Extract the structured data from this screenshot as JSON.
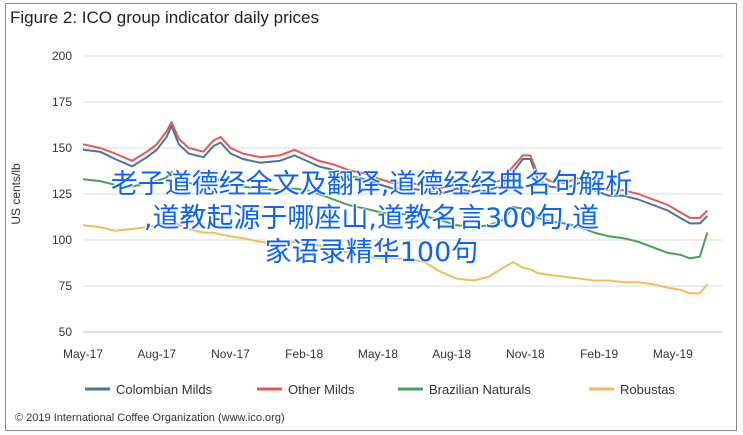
{
  "chart_data": {
    "type": "line",
    "title": "Figure 2: ICO group indicator daily prices",
    "ylabel": "US cents/lb",
    "ylim": [
      50,
      200
    ],
    "yticks": [
      50,
      75,
      100,
      125,
      150,
      175,
      200
    ],
    "xlim": [
      0,
      26
    ],
    "xticks": [
      {
        "pos": 0,
        "label": "May-17"
      },
      {
        "pos": 3,
        "label": "Aug-17"
      },
      {
        "pos": 6,
        "label": "Nov-17"
      },
      {
        "pos": 9,
        "label": "Feb-18"
      },
      {
        "pos": 12,
        "label": "May-18"
      },
      {
        "pos": 15,
        "label": "Aug-18"
      },
      {
        "pos": 18,
        "label": "Nov-18"
      },
      {
        "pos": 21,
        "label": "Feb-19"
      },
      {
        "pos": 24,
        "label": "May-19"
      }
    ],
    "grid": "horizontal",
    "legend_position": "bottom",
    "series": [
      {
        "name": "Colombian Milds",
        "color": "#4a7696",
        "points": [
          [
            0,
            149
          ],
          [
            0.7,
            148
          ],
          [
            1.3,
            144
          ],
          [
            2,
            140
          ],
          [
            2.6,
            145
          ],
          [
            3,
            149
          ],
          [
            3.4,
            156
          ],
          [
            3.6,
            162
          ],
          [
            3.9,
            152
          ],
          [
            4.3,
            147
          ],
          [
            4.9,
            145
          ],
          [
            5.3,
            151
          ],
          [
            5.6,
            153
          ],
          [
            6,
            147
          ],
          [
            6.5,
            144
          ],
          [
            7.2,
            142
          ],
          [
            8,
            143
          ],
          [
            8.6,
            146
          ],
          [
            9.1,
            143
          ],
          [
            9.6,
            140
          ],
          [
            10.2,
            138
          ],
          [
            10.8,
            135
          ],
          [
            11.5,
            133
          ],
          [
            12.1,
            130
          ],
          [
            12.6,
            128
          ],
          [
            13.2,
            128
          ],
          [
            13.9,
            127
          ],
          [
            14.5,
            125
          ],
          [
            15.2,
            128
          ],
          [
            15.9,
            126
          ],
          [
            16.5,
            127
          ],
          [
            17.1,
            130
          ],
          [
            17.5,
            137
          ],
          [
            17.9,
            144
          ],
          [
            18.2,
            144
          ],
          [
            18.5,
            133
          ],
          [
            19,
            129
          ],
          [
            19.6,
            128
          ],
          [
            20.2,
            131
          ],
          [
            20.8,
            127
          ],
          [
            21.4,
            124
          ],
          [
            22,
            124
          ],
          [
            22.6,
            122
          ],
          [
            23.2,
            119
          ],
          [
            23.8,
            116
          ],
          [
            24.3,
            112
          ],
          [
            24.7,
            109
          ],
          [
            25.1,
            109
          ],
          [
            25.4,
            113
          ]
        ]
      },
      {
        "name": "Other Milds",
        "color": "#e8574f",
        "points": [
          [
            0,
            152
          ],
          [
            0.7,
            150
          ],
          [
            1.3,
            147
          ],
          [
            2,
            143
          ],
          [
            2.6,
            148
          ],
          [
            3,
            152
          ],
          [
            3.4,
            159
          ],
          [
            3.6,
            164
          ],
          [
            3.9,
            155
          ],
          [
            4.3,
            150
          ],
          [
            4.9,
            148
          ],
          [
            5.3,
            154
          ],
          [
            5.6,
            156
          ],
          [
            6,
            150
          ],
          [
            6.5,
            147
          ],
          [
            7.2,
            145
          ],
          [
            8,
            146
          ],
          [
            8.6,
            149
          ],
          [
            9.1,
            146
          ],
          [
            9.6,
            143
          ],
          [
            10.2,
            141
          ],
          [
            10.8,
            138
          ],
          [
            11.5,
            136
          ],
          [
            12.1,
            133
          ],
          [
            12.6,
            131
          ],
          [
            13.2,
            131
          ],
          [
            13.9,
            130
          ],
          [
            14.5,
            128
          ],
          [
            15.2,
            131
          ],
          [
            15.9,
            129
          ],
          [
            16.5,
            130
          ],
          [
            17.1,
            133
          ],
          [
            17.5,
            140
          ],
          [
            17.9,
            146
          ],
          [
            18.2,
            146
          ],
          [
            18.5,
            136
          ],
          [
            19,
            132
          ],
          [
            19.6,
            131
          ],
          [
            20.2,
            134
          ],
          [
            20.8,
            130
          ],
          [
            21.4,
            127
          ],
          [
            22,
            127
          ],
          [
            22.6,
            125
          ],
          [
            23.2,
            122
          ],
          [
            23.8,
            119
          ],
          [
            24.3,
            115
          ],
          [
            24.7,
            112
          ],
          [
            25.1,
            112
          ],
          [
            25.4,
            116
          ]
        ]
      },
      {
        "name": "Brazilian Naturals",
        "color": "#4aa058",
        "points": [
          [
            0,
            133
          ],
          [
            0.7,
            132
          ],
          [
            1.3,
            130
          ],
          [
            2,
            129
          ],
          [
            2.6,
            131
          ],
          [
            3,
            132
          ],
          [
            3.4,
            134
          ],
          [
            3.6,
            137
          ],
          [
            3.9,
            133
          ],
          [
            4.3,
            131
          ],
          [
            4.9,
            130
          ],
          [
            5.3,
            132
          ],
          [
            5.6,
            133
          ],
          [
            6,
            131
          ],
          [
            6.5,
            129
          ],
          [
            7.2,
            128
          ],
          [
            8,
            127
          ],
          [
            8.6,
            128
          ],
          [
            9.1,
            127
          ],
          [
            9.6,
            125
          ],
          [
            10.2,
            122
          ],
          [
            10.8,
            119
          ],
          [
            11.5,
            117
          ],
          [
            12.1,
            115
          ],
          [
            12.6,
            114
          ],
          [
            13.2,
            114
          ],
          [
            13.9,
            113
          ],
          [
            14.5,
            111
          ],
          [
            15.2,
            108
          ],
          [
            15.9,
            107
          ],
          [
            16.5,
            108
          ],
          [
            17.1,
            111
          ],
          [
            17.5,
            118
          ],
          [
            17.9,
            117
          ],
          [
            18.2,
            114
          ],
          [
            18.5,
            112
          ],
          [
            19,
            110
          ],
          [
            19.6,
            109
          ],
          [
            20.2,
            107
          ],
          [
            20.8,
            104
          ],
          [
            21.4,
            102
          ],
          [
            22,
            101
          ],
          [
            22.6,
            99
          ],
          [
            23.2,
            96
          ],
          [
            23.8,
            93
          ],
          [
            24.3,
            92
          ],
          [
            24.7,
            90
          ],
          [
            25.1,
            91
          ],
          [
            25.4,
            104
          ]
        ]
      },
      {
        "name": "Robustas",
        "color": "#f4bb5a",
        "points": [
          [
            0,
            108
          ],
          [
            0.7,
            107
          ],
          [
            1.3,
            105
          ],
          [
            2,
            106
          ],
          [
            2.6,
            107
          ],
          [
            3,
            108
          ],
          [
            3.4,
            110
          ],
          [
            3.6,
            112
          ],
          [
            3.9,
            108
          ],
          [
            4.3,
            106
          ],
          [
            4.9,
            104
          ],
          [
            5.3,
            104
          ],
          [
            5.6,
            103
          ],
          [
            6,
            102
          ],
          [
            6.5,
            101
          ],
          [
            7.2,
            99
          ],
          [
            8,
            98
          ],
          [
            8.6,
            99
          ],
          [
            9.1,
            98
          ],
          [
            9.6,
            97
          ],
          [
            10.2,
            96
          ],
          [
            10.8,
            93
          ],
          [
            11.5,
            91
          ],
          [
            12.1,
            90
          ],
          [
            12.6,
            90
          ],
          [
            13.2,
            90
          ],
          [
            13.9,
            88
          ],
          [
            14.5,
            83
          ],
          [
            15.2,
            79
          ],
          [
            15.9,
            78
          ],
          [
            16.5,
            80
          ],
          [
            17.1,
            85
          ],
          [
            17.5,
            88
          ],
          [
            17.9,
            85
          ],
          [
            18.2,
            84
          ],
          [
            18.5,
            82
          ],
          [
            19,
            81
          ],
          [
            19.6,
            80
          ],
          [
            20.2,
            79
          ],
          [
            20.8,
            78
          ],
          [
            21.4,
            78
          ],
          [
            22,
            77
          ],
          [
            22.6,
            77
          ],
          [
            23.2,
            76
          ],
          [
            23.8,
            74
          ],
          [
            24.3,
            73
          ],
          [
            24.7,
            71
          ],
          [
            25.1,
            71
          ],
          [
            25.4,
            76
          ]
        ]
      }
    ]
  },
  "overlay": {
    "line1": "老子道德经全文及翻译,道德经经典名句解析",
    "line2": ",道教起源于哪座山,道教名言300句,道",
    "line3": "家语录精华100句"
  },
  "copyright": "© 2019 International Coffee Organization (www.ico.org)"
}
